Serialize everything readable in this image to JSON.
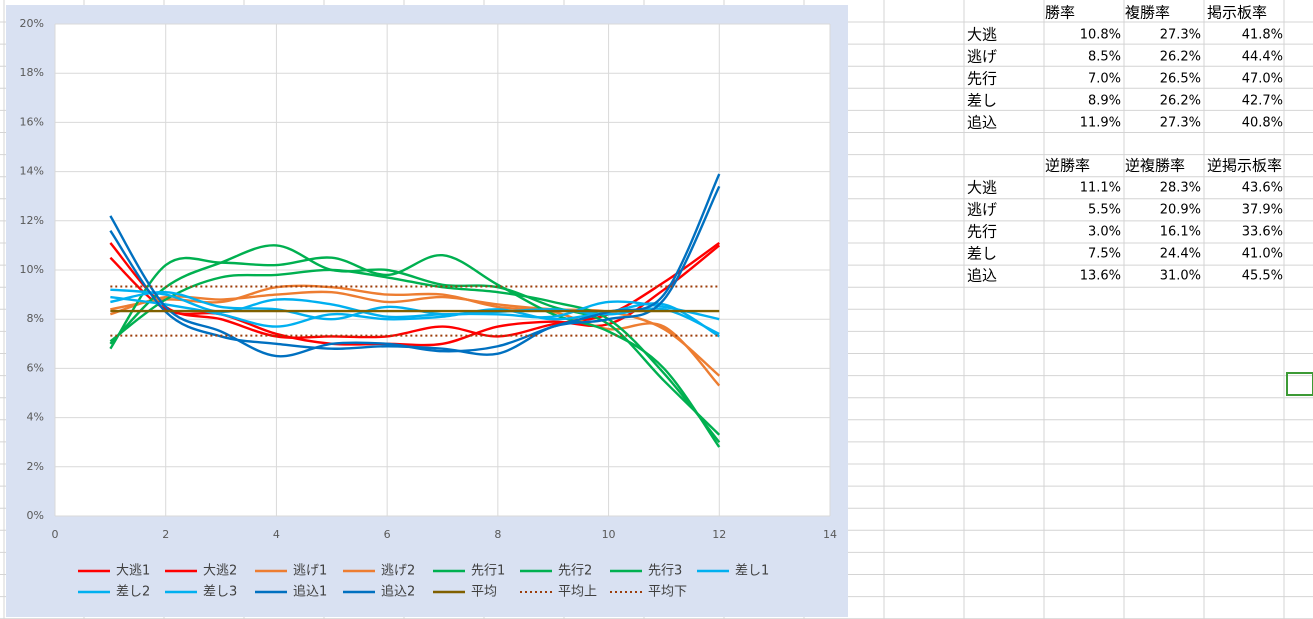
{
  "chart_data": {
    "type": "line",
    "x": [
      1,
      2,
      3,
      4,
      5,
      6,
      7,
      8,
      9,
      10,
      11,
      12
    ],
    "xlim": [
      0,
      14
    ],
    "xticks": [
      0,
      2,
      4,
      6,
      8,
      10,
      12,
      14
    ],
    "ylim": [
      0,
      20
    ],
    "yticks": [
      {
        "value": 0,
        "label": "0%"
      },
      {
        "value": 2,
        "label": "2%"
      },
      {
        "value": 4,
        "label": "4%"
      },
      {
        "value": 6,
        "label": "6%"
      },
      {
        "value": 8,
        "label": "8%"
      },
      {
        "value": 10,
        "label": "10%"
      },
      {
        "value": 12,
        "label": "12%"
      },
      {
        "value": 14,
        "label": "14%"
      },
      {
        "value": 16,
        "label": "16%"
      },
      {
        "value": 18,
        "label": "18%"
      },
      {
        "value": 20,
        "label": "20%"
      }
    ],
    "grid": true,
    "smooth": true,
    "legend": "bottom",
    "series": [
      {
        "name": "大逃1",
        "color": "#ff0000",
        "values": [
          11.1,
          8.5,
          8.0,
          7.3,
          7.3,
          7.3,
          7.7,
          7.3,
          7.8,
          8.2,
          9.5,
          11.1
        ]
      },
      {
        "name": "大逃2",
        "color": "#ff0000",
        "values": [
          10.5,
          8.4,
          8.2,
          7.4,
          7.0,
          7.0,
          7.0,
          7.7,
          7.9,
          7.8,
          9.2,
          11.0
        ]
      },
      {
        "name": "逃げ1",
        "color": "#ed7d31",
        "values": [
          8.4,
          8.8,
          8.7,
          9.3,
          9.3,
          9.0,
          9.0,
          8.5,
          8.3,
          7.6,
          7.7,
          5.3
        ]
      },
      {
        "name": "逃げ2",
        "color": "#ed7d31",
        "values": [
          8.2,
          8.9,
          8.8,
          9.0,
          9.1,
          8.7,
          8.9,
          8.6,
          8.4,
          8.3,
          7.6,
          5.7
        ]
      },
      {
        "name": "先行1",
        "color": "#00b050",
        "values": [
          7.0,
          9.3,
          10.3,
          11.0,
          10.0,
          10.0,
          9.4,
          9.3,
          8.5,
          7.8,
          5.5,
          3.3
        ]
      },
      {
        "name": "先行2",
        "color": "#00b050",
        "values": [
          6.8,
          10.2,
          10.3,
          10.2,
          10.5,
          9.8,
          10.6,
          9.4,
          8.2,
          7.5,
          6.0,
          2.8
        ]
      },
      {
        "name": "先行3",
        "color": "#00b050",
        "values": [
          7.1,
          8.8,
          9.7,
          9.8,
          10.0,
          9.7,
          9.3,
          9.1,
          8.7,
          8.0,
          5.8,
          3.0
        ]
      },
      {
        "name": "差し1",
        "color": "#00b0f0",
        "values": [
          9.2,
          9.0,
          8.3,
          8.8,
          8.6,
          8.1,
          8.2,
          8.2,
          8.1,
          8.7,
          8.5,
          8.0
        ]
      },
      {
        "name": "差し2",
        "color": "#00b0f0",
        "values": [
          8.9,
          8.6,
          8.2,
          7.7,
          8.2,
          8.0,
          8.1,
          8.4,
          8.0,
          8.3,
          8.6,
          7.3
        ]
      },
      {
        "name": "差し3",
        "color": "#00b0f0",
        "values": [
          8.7,
          9.1,
          8.5,
          8.4,
          8.0,
          8.5,
          8.2,
          8.3,
          8.4,
          8.2,
          8.4,
          7.4
        ]
      },
      {
        "name": "追込1",
        "color": "#0070c0",
        "values": [
          12.2,
          8.5,
          7.5,
          6.5,
          7.0,
          7.0,
          6.7,
          6.9,
          7.7,
          8.3,
          9.0,
          13.9
        ]
      },
      {
        "name": "追込2",
        "color": "#0070c0",
        "values": [
          11.6,
          8.3,
          7.3,
          7.0,
          6.8,
          6.9,
          6.8,
          6.6,
          7.7,
          8.0,
          8.8,
          13.4
        ]
      },
      {
        "name": "平均",
        "color": "#806000",
        "values": [
          8.33,
          8.33,
          8.33,
          8.33,
          8.33,
          8.33,
          8.33,
          8.33,
          8.33,
          8.33,
          8.33,
          8.33
        ]
      },
      {
        "name": "平均上",
        "color": "#9c3d0a",
        "style": "dotted",
        "values": [
          9.33,
          9.33,
          9.33,
          9.33,
          9.33,
          9.33,
          9.33,
          9.33,
          9.33,
          9.33,
          9.33,
          9.33
        ]
      },
      {
        "name": "平均下",
        "color": "#9c3d0a",
        "style": "dotted",
        "values": [
          7.33,
          7.33,
          7.33,
          7.33,
          7.33,
          7.33,
          7.33,
          7.33,
          7.33,
          7.33,
          7.33,
          7.33
        ]
      }
    ]
  },
  "sheet": {
    "tables": [
      {
        "header": [
          "勝率",
          "複勝率",
          "掲示板率"
        ],
        "rows": [
          [
            "大逃",
            "10.8%",
            "27.3%",
            "41.8%"
          ],
          [
            "逃げ",
            "8.5%",
            "26.2%",
            "44.4%"
          ],
          [
            "先行",
            "7.0%",
            "26.5%",
            "47.0%"
          ],
          [
            "差し",
            "8.9%",
            "26.2%",
            "42.7%"
          ],
          [
            "追込",
            "11.9%",
            "27.3%",
            "40.8%"
          ]
        ]
      },
      {
        "header": [
          "逆勝率",
          "逆複勝率",
          "逆掲示板率"
        ],
        "rows": [
          [
            "大逃",
            "11.1%",
            "28.3%",
            "43.6%"
          ],
          [
            "逃げ",
            "5.5%",
            "20.9%",
            "37.9%"
          ],
          [
            "先行",
            "3.0%",
            "16.1%",
            "33.6%"
          ],
          [
            "差し",
            "7.5%",
            "24.4%",
            "41.0%"
          ],
          [
            "追込",
            "13.6%",
            "31.0%",
            "45.5%"
          ]
        ]
      }
    ]
  }
}
